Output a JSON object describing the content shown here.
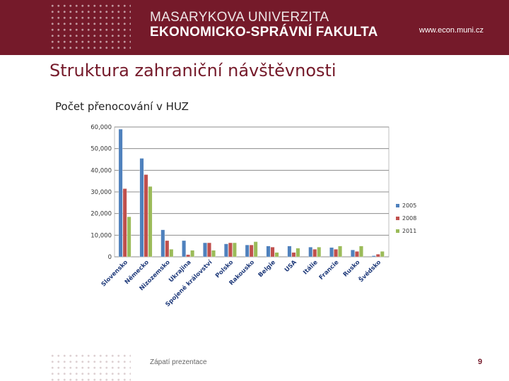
{
  "header": {
    "university": "MASARYKOVA UNIVERZITA",
    "faculty": "EKONOMICKO-SPRÁVNÍ FAKULTA",
    "url": "www.econ.muni.cz"
  },
  "slide": {
    "title": "Struktura zahraniční návštěvnosti"
  },
  "footer": {
    "text": "Zápatí prezentace",
    "page_number": "9"
  },
  "colors": {
    "brand": "#751a2a",
    "series_2005": "#4f81bd",
    "series_2008": "#c0504d",
    "series_2011": "#9bbb59"
  },
  "chart_data": {
    "type": "bar",
    "title": "Počet přenocování v HUZ",
    "xlabel": "",
    "ylabel": "",
    "ylim": [
      0,
      60000
    ],
    "yticks": [
      0,
      10000,
      20000,
      30000,
      40000,
      50000,
      60000
    ],
    "ytick_labels": [
      "0",
      "10,000",
      "20,000",
      "30,000",
      "40,000",
      "50,000",
      "60,000"
    ],
    "grid": true,
    "legend": "right",
    "categories": [
      "Slovensko",
      "Německo",
      "Nizozemsko",
      "Ukrajina",
      "Spojené království",
      "Polsko",
      "Rakousko",
      "Belgie",
      "USA",
      "Itálie",
      "Francie",
      "Rusko",
      "Švédsko"
    ],
    "series": [
      {
        "name": "2005",
        "color": "#4f81bd",
        "values": [
          59000,
          45500,
          12500,
          7500,
          6500,
          6000,
          5500,
          5000,
          5000,
          4500,
          4300,
          3200,
          500
        ]
      },
      {
        "name": "2008",
        "color": "#c0504d",
        "values": [
          31500,
          38000,
          7500,
          1000,
          6500,
          6500,
          5500,
          4500,
          2000,
          3500,
          3500,
          2500,
          1200
        ]
      },
      {
        "name": "2011",
        "color": "#9bbb59",
        "values": [
          18500,
          32500,
          3500,
          3000,
          3000,
          6500,
          7000,
          2000,
          4000,
          4500,
          5000,
          5000,
          2500
        ]
      }
    ]
  }
}
